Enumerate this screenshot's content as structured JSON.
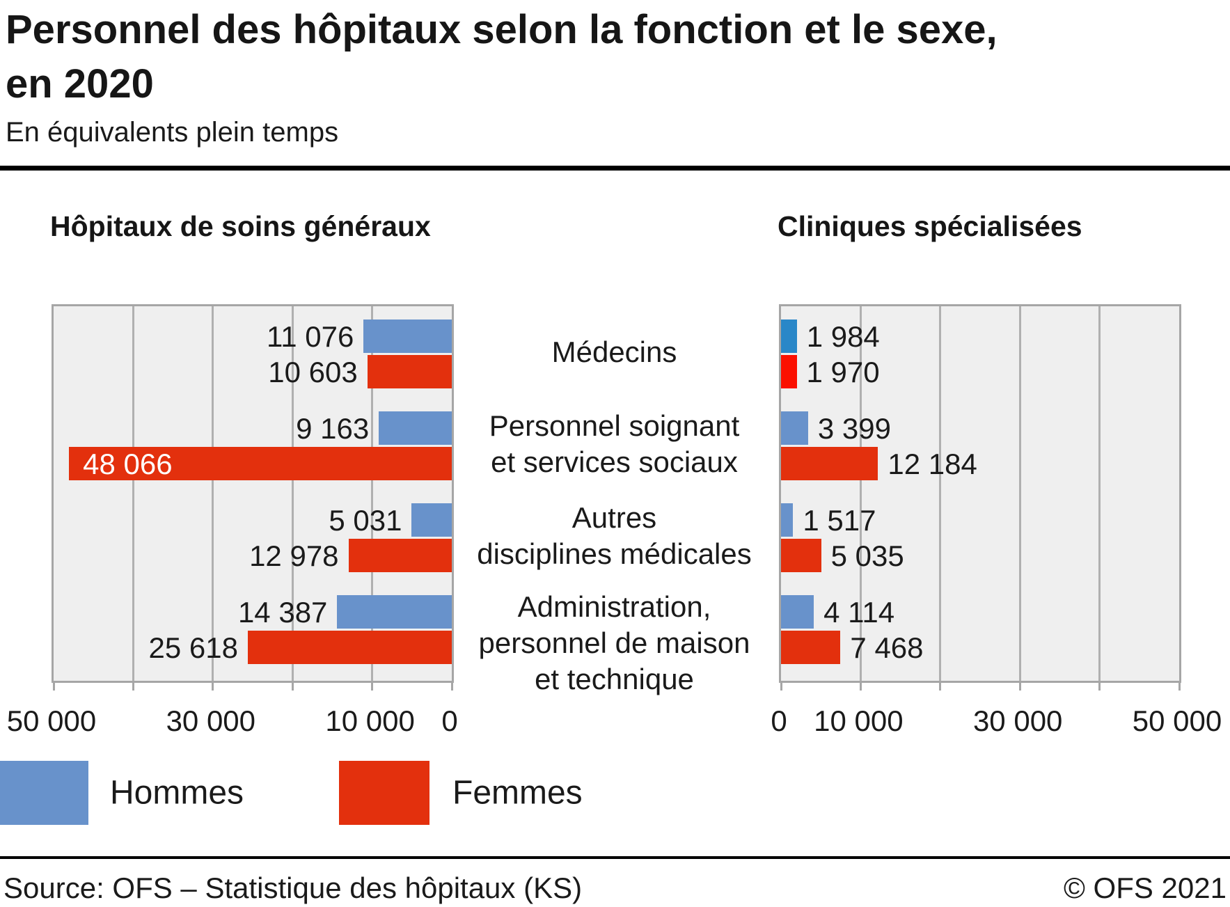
{
  "title": "Personnel des hôpitaux selon la fonction et le sexe,\nen 2020",
  "subtitle": "En équivalents plein temps",
  "colors": {
    "hommes": "#6892cb",
    "femmes": "#e3300d",
    "hommes_bright": "#2987c8",
    "femmes_bright": "#fb1000",
    "plot_background": "#efefef",
    "gridline": "#b0b0b0",
    "plot_border": "#a6a6a6",
    "text": "#1a1a1a",
    "divider": "#000000"
  },
  "categories": [
    [
      "Médecins"
    ],
    [
      "Personnel soignant",
      "et services sociaux"
    ],
    [
      "Autres",
      "disciplines médicales"
    ],
    [
      "Administration,",
      "personnel de maison",
      "et technique"
    ]
  ],
  "chart_data": [
    {
      "type": "bar",
      "orientation": "horizontal",
      "direction": "right-to-left",
      "title": "Hôpitaux de soins généraux",
      "axis": {
        "min": 0,
        "max": 50000,
        "grid_interval": 10000,
        "tick_interval": 10000,
        "ticks": [
          {
            "value": 50000,
            "label": "50 000"
          },
          {
            "value": 30000,
            "label": "30 000"
          },
          {
            "value": 10000,
            "label": "10 000"
          },
          {
            "value": 0,
            "label": "0"
          }
        ]
      },
      "series": [
        {
          "name": "Hommes",
          "values": [
            11076,
            9163,
            5031,
            14387
          ],
          "labels": [
            "11 076",
            "9 163",
            "5 031",
            "14 387"
          ],
          "colors": [
            "#6892cb",
            "#6892cb",
            "#6892cb",
            "#6892cb"
          ]
        },
        {
          "name": "Femmes",
          "values": [
            10603,
            48066,
            12978,
            25618
          ],
          "labels": [
            "10 603",
            "48 066",
            "12 978",
            "25 618"
          ],
          "colors": [
            "#e3300d",
            "#e3300d",
            "#e3300d",
            "#e3300d"
          ]
        }
      ]
    },
    {
      "type": "bar",
      "orientation": "horizontal",
      "direction": "left-to-right",
      "title": "Cliniques spécialisées",
      "axis": {
        "min": 0,
        "max": 50000,
        "grid_interval": 10000,
        "tick_interval": 10000,
        "ticks": [
          {
            "value": 0,
            "label": "0"
          },
          {
            "value": 10000,
            "label": "10 000"
          },
          {
            "value": 30000,
            "label": "30 000"
          },
          {
            "value": 50000,
            "label": "50 000"
          }
        ]
      },
      "series": [
        {
          "name": "Hommes",
          "values": [
            1984,
            3399,
            1517,
            4114
          ],
          "labels": [
            "1 984",
            "3 399",
            "1 517",
            "4 114"
          ],
          "colors": [
            "#2987c8",
            "#6892cb",
            "#6892cb",
            "#6892cb"
          ]
        },
        {
          "name": "Femmes",
          "values": [
            1970,
            12184,
            5035,
            7468
          ],
          "labels": [
            "1 970",
            "12 184",
            "5 035",
            "7 468"
          ],
          "colors": [
            "#fb1000",
            "#e3300d",
            "#e3300d",
            "#e3300d"
          ]
        }
      ]
    }
  ],
  "legend": [
    {
      "label": "Hommes",
      "color": "#6892cb"
    },
    {
      "label": "Femmes",
      "color": "#e3300d"
    }
  ],
  "source": {
    "left": "Source: OFS – Statistique des hôpitaux (KS)",
    "right": "© OFS 2021"
  }
}
